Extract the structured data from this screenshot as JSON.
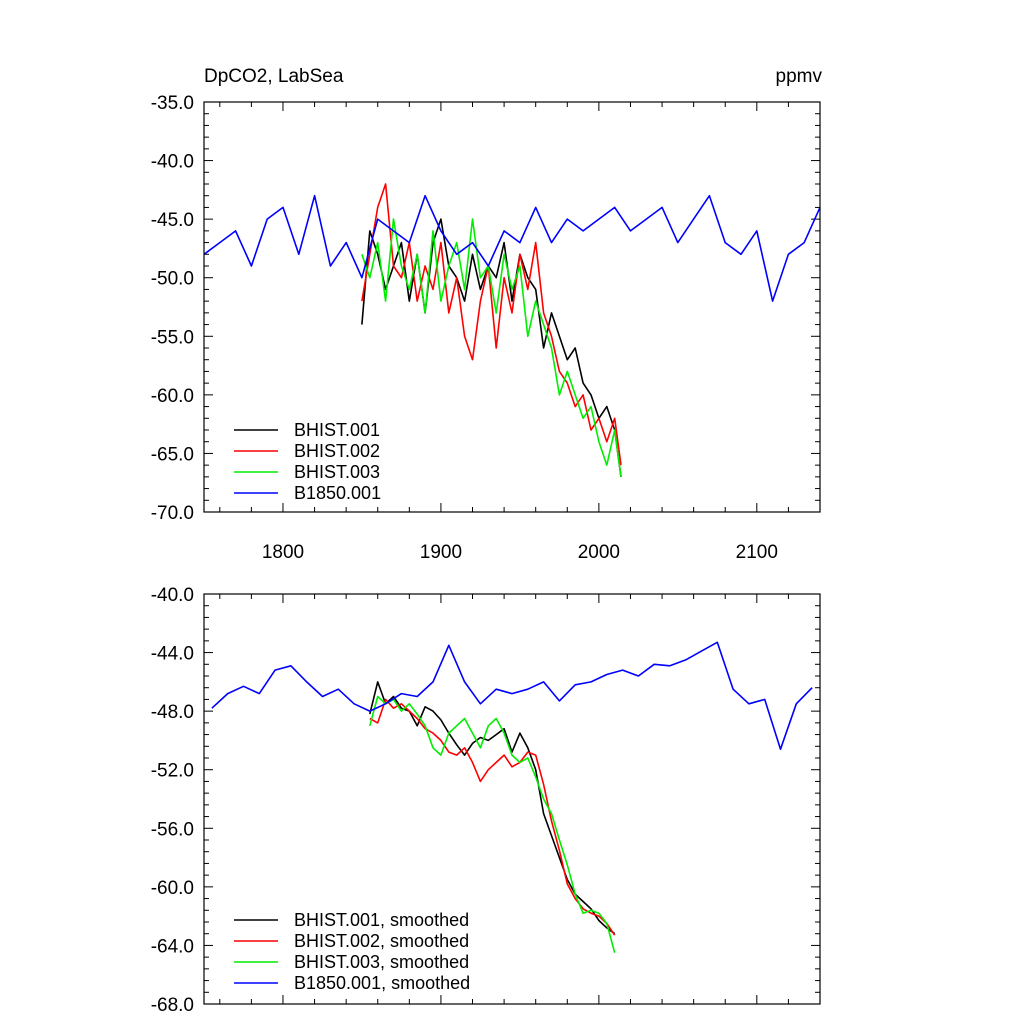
{
  "chart_data": [
    {
      "type": "line",
      "title_left": "DpCO2, LabSea",
      "title_right": "ppmv",
      "xlabel": "",
      "ylabel": "",
      "xlim": [
        1750,
        2140
      ],
      "ylim": [
        -70,
        -35
      ],
      "x_ticks": [
        1800,
        1900,
        2000,
        2100
      ],
      "x_tick_labels": [
        "1800",
        "1900",
        "2000",
        "2100"
      ],
      "y_ticks": [
        -35,
        -40,
        -45,
        -50,
        -55,
        -60,
        -65,
        -70
      ],
      "y_tick_labels": [
        "-35.0",
        "-40.0",
        "-45.0",
        "-50.0",
        "-55.0",
        "-60.0",
        "-65.0",
        "-70.0"
      ],
      "legend_position": "bottom-left",
      "series": [
        {
          "name": "BHIST.001",
          "color": "#000000",
          "x": [
            1850,
            1855,
            1860,
            1865,
            1870,
            1875,
            1880,
            1885,
            1890,
            1895,
            1900,
            1905,
            1910,
            1915,
            1920,
            1925,
            1930,
            1935,
            1940,
            1945,
            1950,
            1955,
            1960,
            1965,
            1970,
            1975,
            1980,
            1985,
            1990,
            1995,
            2000,
            2005,
            2010,
            2014
          ],
          "values": [
            -54,
            -46,
            -48,
            -51,
            -49,
            -47,
            -52,
            -48,
            -53,
            -47,
            -45,
            -49,
            -50,
            -52,
            -48,
            -51,
            -49,
            -50,
            -47,
            -52,
            -48,
            -50,
            -51,
            -56,
            -53,
            -55,
            -57,
            -56,
            -59,
            -60,
            -62,
            -61,
            -63,
            -67
          ]
        },
        {
          "name": "BHIST.002",
          "color": "#ff0000",
          "x": [
            1850,
            1855,
            1860,
            1865,
            1870,
            1875,
            1880,
            1885,
            1890,
            1895,
            1900,
            1905,
            1910,
            1915,
            1920,
            1925,
            1930,
            1935,
            1940,
            1945,
            1950,
            1955,
            1960,
            1965,
            1970,
            1975,
            1980,
            1985,
            1990,
            1995,
            2000,
            2005,
            2010,
            2014
          ],
          "values": [
            -52,
            -48,
            -44,
            -42,
            -49,
            -50,
            -47,
            -52,
            -49,
            -51,
            -47,
            -53,
            -50,
            -55,
            -57,
            -52,
            -49,
            -56,
            -50,
            -53,
            -48,
            -51,
            -47,
            -53,
            -55,
            -58,
            -59,
            -61,
            -60,
            -63,
            -62,
            -64,
            -62,
            -66
          ]
        },
        {
          "name": "BHIST.003",
          "color": "#00ee00",
          "x": [
            1850,
            1855,
            1860,
            1865,
            1870,
            1875,
            1880,
            1885,
            1890,
            1895,
            1900,
            1905,
            1910,
            1915,
            1920,
            1925,
            1930,
            1935,
            1940,
            1945,
            1950,
            1955,
            1960,
            1965,
            1970,
            1975,
            1980,
            1985,
            1990,
            1995,
            2000,
            2005,
            2010,
            2014
          ],
          "values": [
            -48,
            -50,
            -47,
            -52,
            -45,
            -49,
            -51,
            -48,
            -53,
            -46,
            -52,
            -49,
            -47,
            -51,
            -45,
            -50,
            -49,
            -53,
            -48,
            -51,
            -49,
            -55,
            -52,
            -54,
            -56,
            -60,
            -58,
            -60,
            -62,
            -61,
            -64,
            -66,
            -63,
            -67
          ]
        },
        {
          "name": "B1850.001",
          "color": "#0000ff",
          "x": [
            1750,
            1760,
            1770,
            1780,
            1790,
            1800,
            1810,
            1820,
            1830,
            1840,
            1850,
            1860,
            1870,
            1880,
            1890,
            1900,
            1910,
            1920,
            1930,
            1940,
            1950,
            1960,
            1970,
            1980,
            1990,
            2000,
            2010,
            2020,
            2030,
            2040,
            2050,
            2060,
            2070,
            2080,
            2090,
            2100,
            2110,
            2120,
            2130,
            2140
          ],
          "values": [
            -48,
            -47,
            -46,
            -49,
            -45,
            -44,
            -48,
            -43,
            -49,
            -47,
            -50,
            -45,
            -46,
            -47,
            -43,
            -46,
            -48,
            -47,
            -49,
            -46,
            -47,
            -44,
            -47,
            -45,
            -46,
            -45,
            -44,
            -46,
            -45,
            -44,
            -47,
            -45,
            -43,
            -47,
            -48,
            -46,
            -52,
            -48,
            -47,
            -44
          ]
        }
      ]
    },
    {
      "type": "line",
      "title_left": "",
      "title_right": "",
      "xlabel": "",
      "ylabel": "",
      "xlim": [
        1750,
        2140
      ],
      "ylim": [
        -68,
        -40
      ],
      "x_ticks": [
        1800,
        1900,
        2000,
        2100
      ],
      "x_tick_labels": [],
      "y_ticks": [
        -40,
        -44,
        -48,
        -52,
        -56,
        -60,
        -64,
        -68
      ],
      "y_tick_labels": [
        "-40.0",
        "-44.0",
        "-48.0",
        "-52.0",
        "-56.0",
        "-60.0",
        "-64.0",
        "-68.0"
      ],
      "legend_position": "bottom-left",
      "series": [
        {
          "name": "BHIST.001, smoothed",
          "color": "#000000",
          "x": [
            1855,
            1860,
            1865,
            1870,
            1875,
            1880,
            1885,
            1890,
            1895,
            1900,
            1905,
            1910,
            1915,
            1920,
            1925,
            1930,
            1935,
            1940,
            1945,
            1950,
            1955,
            1960,
            1965,
            1970,
            1975,
            1980,
            1985,
            1990,
            1995,
            2000,
            2005,
            2010
          ],
          "values": [
            -48.2,
            -46.0,
            -47.5,
            -47.0,
            -47.8,
            -48.0,
            -49.0,
            -47.7,
            -48.0,
            -48.6,
            -49.5,
            -50.3,
            -51.0,
            -50.2,
            -49.8,
            -50.0,
            -49.6,
            -49.2,
            -50.8,
            -49.5,
            -50.5,
            -52.0,
            -55.0,
            -56.5,
            -58.0,
            -59.5,
            -60.5,
            -61.0,
            -61.5,
            -62.3,
            -62.8,
            -63.2
          ]
        },
        {
          "name": "BHIST.002, smoothed",
          "color": "#ff0000",
          "x": [
            1855,
            1860,
            1865,
            1870,
            1875,
            1880,
            1885,
            1890,
            1895,
            1900,
            1905,
            1910,
            1915,
            1920,
            1925,
            1930,
            1935,
            1940,
            1945,
            1950,
            1955,
            1960,
            1965,
            1970,
            1975,
            1980,
            1985,
            1990,
            1995,
            2000,
            2005,
            2010
          ],
          "values": [
            -48.5,
            -48.8,
            -47.2,
            -47.8,
            -47.5,
            -48.0,
            -48.5,
            -49.2,
            -49.5,
            -50.0,
            -50.8,
            -51.0,
            -50.5,
            -51.5,
            -52.8,
            -52.0,
            -51.5,
            -51.0,
            -51.8,
            -51.5,
            -50.8,
            -51.0,
            -53.0,
            -55.5,
            -57.5,
            -59.8,
            -60.8,
            -61.5,
            -61.8,
            -62.0,
            -62.5,
            -63.3
          ]
        },
        {
          "name": "BHIST.003, smoothed",
          "color": "#00ee00",
          "x": [
            1855,
            1860,
            1865,
            1870,
            1875,
            1880,
            1885,
            1890,
            1895,
            1900,
            1905,
            1910,
            1915,
            1920,
            1925,
            1930,
            1935,
            1940,
            1945,
            1950,
            1955,
            1960,
            1965,
            1970,
            1975,
            1980,
            1985,
            1990,
            1995,
            2000,
            2005,
            2010
          ],
          "values": [
            -49.0,
            -47.0,
            -47.5,
            -47.2,
            -48.0,
            -47.5,
            -48.2,
            -49.0,
            -50.5,
            -51.0,
            -49.5,
            -49.0,
            -48.5,
            -49.5,
            -50.5,
            -49.0,
            -48.5,
            -49.5,
            -51.0,
            -51.5,
            -51.2,
            -52.5,
            -54.0,
            -55.0,
            -56.8,
            -58.5,
            -60.5,
            -61.8,
            -61.6,
            -61.8,
            -62.5,
            -64.5
          ]
        },
        {
          "name": "B1850.001, smoothed",
          "color": "#0000ff",
          "x": [
            1755,
            1765,
            1775,
            1785,
            1795,
            1805,
            1815,
            1825,
            1835,
            1845,
            1855,
            1865,
            1875,
            1885,
            1895,
            1905,
            1915,
            1925,
            1935,
            1945,
            1955,
            1965,
            1975,
            1985,
            1995,
            2005,
            2015,
            2025,
            2035,
            2045,
            2055,
            2065,
            2075,
            2085,
            2095,
            2105,
            2115,
            2125,
            2135
          ],
          "values": [
            -47.8,
            -46.8,
            -46.3,
            -46.8,
            -45.2,
            -44.9,
            -46.0,
            -47.0,
            -46.5,
            -47.5,
            -48.0,
            -47.5,
            -46.8,
            -47.0,
            -46.0,
            -43.5,
            -46.0,
            -47.5,
            -46.5,
            -46.8,
            -46.5,
            -46.0,
            -47.3,
            -46.2,
            -46.0,
            -45.5,
            -45.2,
            -45.6,
            -44.8,
            -44.9,
            -44.5,
            -43.9,
            -43.3,
            -46.5,
            -47.5,
            -47.2,
            -50.6,
            -47.5,
            -46.4
          ]
        }
      ]
    }
  ]
}
